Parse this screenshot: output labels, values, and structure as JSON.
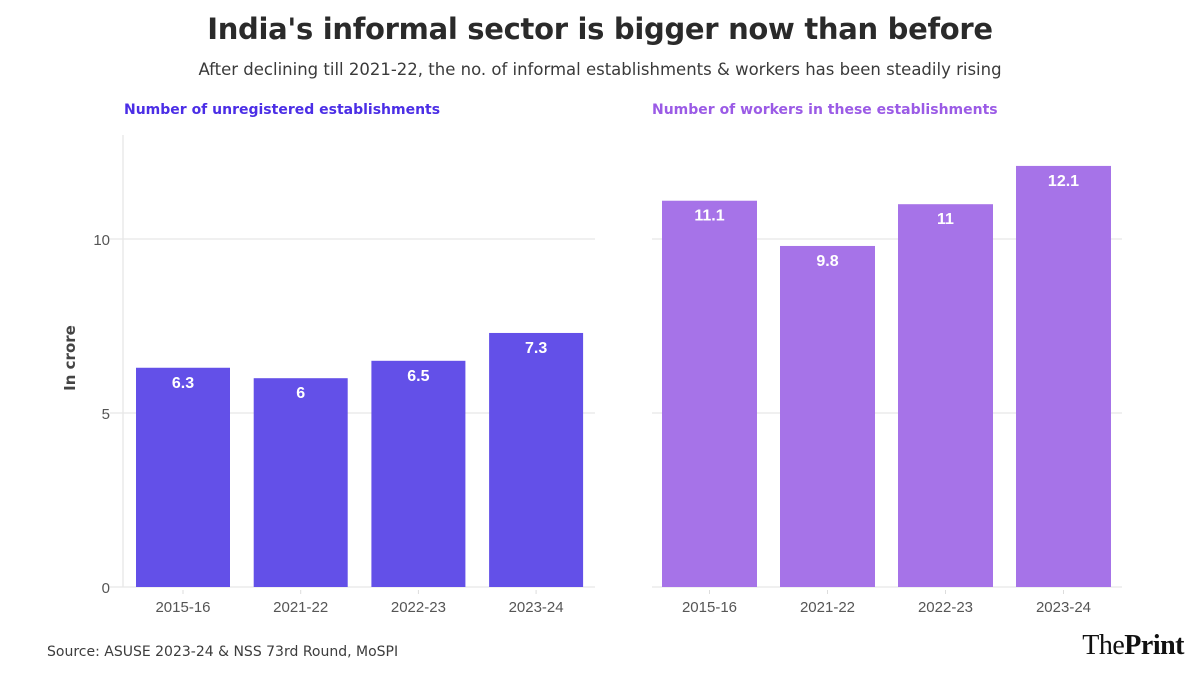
{
  "header": {
    "title": "India's informal sector is bigger now than before",
    "subtitle": "After declining till 2021-22, the no. of informal establishments & workers has been steadily rising"
  },
  "footer": {
    "source": "Source: ASUSE 2023-24 & NSS 73rd Round, MoSPI",
    "logo_light": "The",
    "logo_bold": "Print"
  },
  "chart_data": [
    {
      "type": "bar",
      "title": "Number of unregistered establishments",
      "title_color": "#4b2ee6",
      "bar_color": "#6350e8",
      "categories": [
        "2015-16",
        "2021-22",
        "2022-23",
        "2023-24"
      ],
      "values": [
        6.3,
        6,
        6.5,
        7.3
      ],
      "data_labels": [
        "6.3",
        "6",
        "6.5",
        "7.3"
      ],
      "xlabel": "",
      "ylabel": "In crore",
      "ylim": [
        0,
        13
      ],
      "yticks": [
        0,
        5,
        10
      ],
      "ytick_labels": [
        "0",
        "5",
        "10"
      ],
      "grid": true
    },
    {
      "type": "bar",
      "title": "Number of workers in these establishments",
      "title_color": "#9b5be6",
      "bar_color": "#a673e8",
      "categories": [
        "2015-16",
        "2021-22",
        "2022-23",
        "2023-24"
      ],
      "values": [
        11.1,
        9.8,
        11,
        12.1
      ],
      "data_labels": [
        "11.1",
        "9.8",
        "11",
        "12.1"
      ],
      "xlabel": "",
      "ylabel": "",
      "ylim": [
        0,
        13
      ],
      "yticks": [
        0,
        5,
        10
      ],
      "grid": true
    }
  ]
}
